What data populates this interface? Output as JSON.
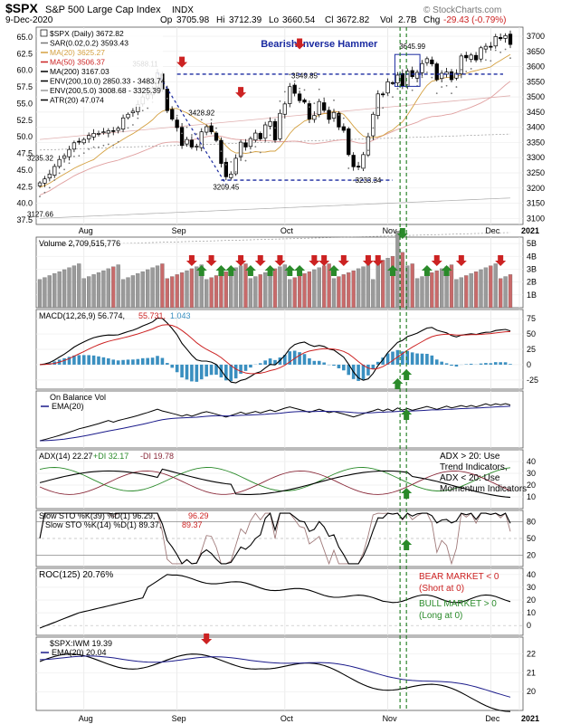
{
  "header": {
    "symbol": "$SPX",
    "name": "S&P 500 Large Cap Index",
    "exchange": "INDX",
    "date": "9-Dec-2020",
    "open_label": "Op",
    "open": "3705.98",
    "high_label": "Hi",
    "high": "3712.39",
    "low_label": "Lo",
    "low": "3660.54",
    "close_label": "Cl",
    "close": "3672.82",
    "vol_label": "Vol",
    "volume": "2.7B",
    "chg_label": "Chg",
    "change": "-29.43 (-0.79%)",
    "watermark": "© StockCharts.com"
  },
  "chart_data": [
    {
      "type": "candlestick",
      "panel": "price",
      "legend": [
        {
          "text": "$SPX (Daily) 3672.82",
          "color": "#000000"
        },
        {
          "text": "SAR(0.02,0.2) 3593.43",
          "color": "#777777"
        },
        {
          "text": "MA(20) 3625.27",
          "color": "#d4a040"
        },
        {
          "text": "MA(50) 3506.37",
          "color": "#cc2222"
        },
        {
          "text": "MA(200) 3167.03",
          "color": "#000000"
        },
        {
          "text": "ENV(200,10.0) 2850.33 - 3483.74",
          "color": "#000000"
        },
        {
          "text": "ENV(200,5.0) 3008.68 - 3325.39",
          "color": "#999999"
        },
        {
          "text": "ATR(20) 47.074",
          "color": "#000000"
        }
      ],
      "y_right_ticks": [
        "3700",
        "3650",
        "3600",
        "3550",
        "3500",
        "3450",
        "3400",
        "3350",
        "3300",
        "3250",
        "3200",
        "3150",
        "3100"
      ],
      "y_left_ticks": [
        "65.0",
        "62.5",
        "60.0",
        "57.5",
        "55.0",
        "52.5",
        "50.0",
        "47.5",
        "45.0",
        "42.5",
        "40.0",
        "37.5"
      ],
      "ylim": [
        3080,
        3730
      ],
      "x_ticks": [
        "Aug",
        "Sep",
        "Oct",
        "Nov",
        "Dec",
        "2021"
      ],
      "annotations": [
        "3235.32",
        "3127.66",
        "3588.11",
        "3428.92",
        "3209.45",
        "3549.85",
        "3233.34",
        "3645.99",
        "Bearish Inverse Hammer"
      ],
      "close_values": [
        3217,
        3230,
        3246,
        3271,
        3294,
        3306,
        3327,
        3349,
        3351,
        3360,
        3373,
        3380,
        3380,
        3385,
        3389,
        3386,
        3397,
        3431,
        3443,
        3453,
        3475,
        3500,
        3508,
        3528,
        3580,
        3526,
        3455,
        3427,
        3399,
        3340,
        3360,
        3335,
        3338,
        3385,
        3402,
        3385,
        3357,
        3281,
        3237,
        3246,
        3298,
        3351,
        3335,
        3363,
        3381,
        3362,
        3408,
        3419,
        3358,
        3446,
        3477,
        3534,
        3512,
        3488,
        3483,
        3427,
        3439,
        3485,
        3456,
        3426,
        3449,
        3401,
        3390,
        3310,
        3270,
        3270,
        3310,
        3369,
        3443,
        3510,
        3509,
        3550,
        3545,
        3572,
        3537,
        3585,
        3567,
        3581,
        3610,
        3626,
        3609,
        3557,
        3578,
        3582,
        3557,
        3578,
        3635,
        3629,
        3638,
        3622,
        3662,
        3667,
        3664,
        3699,
        3692,
        3702,
        3673
      ]
    },
    {
      "type": "bar",
      "panel": "volume",
      "legend": "Volume 2,709,515,776",
      "y_ticks": [
        "5B",
        "4B",
        "3B",
        "2B",
        "1B"
      ],
      "ylim": [
        0,
        5500000000
      ]
    },
    {
      "type": "line",
      "panel": "macd",
      "legend": [
        {
          "text": "MACD(12,26,9) 56.774,",
          "color": "#000000"
        },
        {
          "text": "55.731,",
          "color": "#cc2222"
        },
        {
          "text": "1.043",
          "color": "#3a8fc0"
        }
      ],
      "y_ticks": [
        "75",
        "50",
        "25",
        "0",
        "-25"
      ],
      "ylim": [
        -40,
        90
      ]
    },
    {
      "type": "line",
      "panel": "obv",
      "legend": [
        {
          "text": "On Balance Vol",
          "color": "#000000"
        },
        {
          "text": "EMA(20)",
          "color": "#1a1a8a"
        }
      ]
    },
    {
      "type": "line",
      "panel": "adx",
      "legend": [
        {
          "text": "ADX(14) 22.27",
          "color": "#000000"
        },
        {
          "text": "+DI 32.17",
          "color": "#2a8a2a"
        },
        {
          "text": "-DI 19.78",
          "color": "#8a2a3a"
        }
      ],
      "y_ticks": [
        "40",
        "30",
        "20",
        "10"
      ],
      "notes": [
        "ADX > 20: Use",
        "Trend Indicators,",
        "ADX < 20: Use",
        "Momentum Indicators"
      ]
    },
    {
      "type": "line",
      "panel": "stochastics",
      "legend": [
        {
          "text": "Slow STO %K(39) %D(1) 96.29,",
          "color": "#000000"
        },
        {
          "text": "96.29",
          "color": "#cc2222"
        },
        {
          "text": "Slow STO %K(14) %D(1) 89.37,",
          "color": "#000000"
        },
        {
          "text": "89.37",
          "color": "#cc2222"
        }
      ],
      "y_ticks": [
        "80",
        "50",
        "20"
      ]
    },
    {
      "type": "line",
      "panel": "roc",
      "legend": "ROC(125) 20.76%",
      "y_ticks": [
        "40",
        "30",
        "20",
        "10",
        "0"
      ],
      "notes_bear": [
        "BEAR MARKET < 0",
        "(Short at 0)"
      ],
      "notes_bull": [
        "BULL MARKET > 0",
        "(Long at 0)"
      ]
    },
    {
      "type": "line",
      "panel": "ratio",
      "legend": [
        {
          "text": "$SPX:IWM 19.39",
          "color": "#000000"
        },
        {
          "text": "EMA(20) 20.04",
          "color": "#1a1a8a"
        }
      ],
      "y_ticks": [
        "22",
        "21",
        "20"
      ]
    }
  ],
  "colors": {
    "up": "#2a8a2a",
    "down": "#cc2222",
    "ma20": "#d4a040",
    "ma50": "#e0a0a0",
    "ema": "#1a1a8a",
    "macd_hist": "#3a8fc0",
    "annotation_blue": "#1a2aa0"
  }
}
